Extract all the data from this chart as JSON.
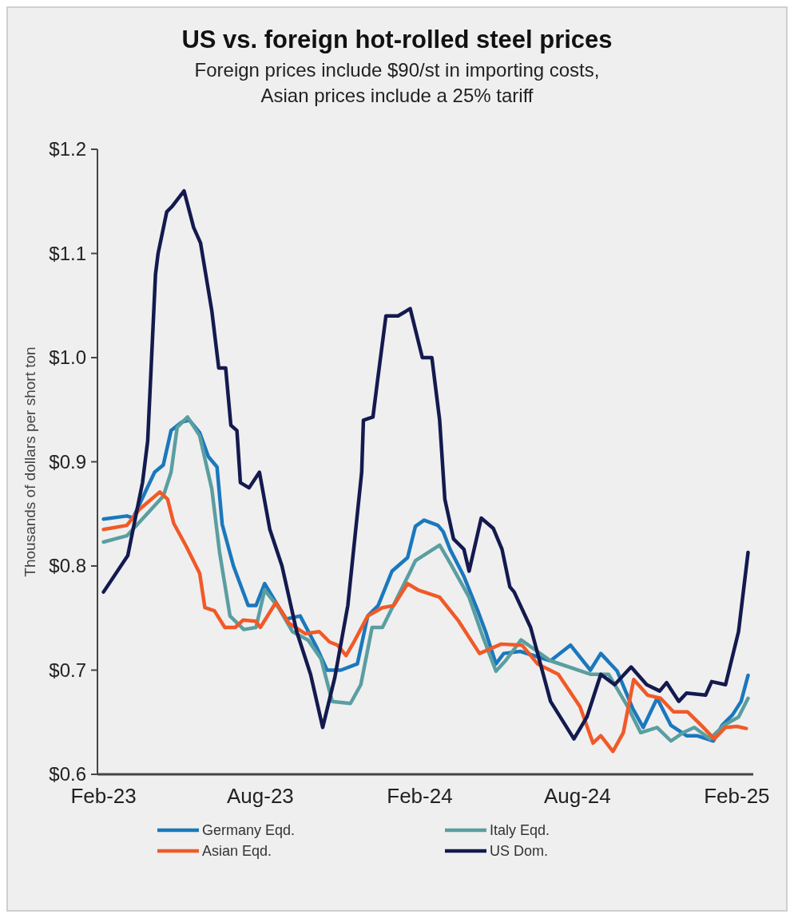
{
  "chart_data": {
    "type": "line",
    "title": "US vs. foreign hot-rolled steel prices",
    "subtitle": "Foreign prices include $90/st in importing costs, Asian prices include a 25% tariff",
    "ylabel": "Thousands of dollars per short ton",
    "xlim": [
      "2023-01-25",
      "2025-02-20"
    ],
    "xticks": [
      {
        "value": "2023-02-01",
        "label": "Feb-23"
      },
      {
        "value": "2023-08-01",
        "label": "Aug-23"
      },
      {
        "value": "2024-02-01",
        "label": "Feb-24"
      },
      {
        "value": "2024-08-01",
        "label": "Aug-24"
      },
      {
        "value": "2025-02-01",
        "label": "Feb-25"
      }
    ],
    "ylim": [
      0.6,
      1.2
    ],
    "yticks": [
      {
        "value": 0.6,
        "label": "$0.6"
      },
      {
        "value": 0.7,
        "label": "$0.7"
      },
      {
        "value": 0.8,
        "label": "$0.8"
      },
      {
        "value": 0.9,
        "label": "$0.9"
      },
      {
        "value": 1.0,
        "label": "$1.0"
      },
      {
        "value": 1.1,
        "label": "$1.1"
      },
      {
        "value": 1.2,
        "label": "$1.2"
      }
    ],
    "grid": false,
    "legend": "bottom",
    "marker": "none",
    "line_style": "solid",
    "series": [
      {
        "name": "Germany Eqd.",
        "color": "#1a78bd",
        "x": [
          "2023-02-01",
          "2023-02-28",
          "2023-03-07",
          "2023-04-01",
          "2023-04-11",
          "2023-04-20",
          "2023-05-02",
          "2023-05-11",
          "2023-05-23",
          "2023-06-02",
          "2023-06-12",
          "2023-06-18",
          "2023-07-01",
          "2023-07-18",
          "2023-07-27",
          "2023-08-06",
          "2023-08-19",
          "2023-08-31",
          "2023-09-16",
          "2023-10-05",
          "2023-10-17",
          "2023-11-02",
          "2023-11-21",
          "2023-12-03",
          "2023-12-15",
          "2023-12-31",
          "2024-01-18",
          "2024-01-27",
          "2024-02-06",
          "2024-02-22",
          "2024-02-28",
          "2024-03-07",
          "2024-03-23",
          "2024-04-08",
          "2024-04-17",
          "2024-04-29",
          "2024-05-08",
          "2024-05-27",
          "2024-07-01",
          "2024-07-24",
          "2024-08-16",
          "2024-08-28",
          "2024-09-16",
          "2024-10-04",
          "2024-10-16",
          "2024-11-01",
          "2024-11-17",
          "2024-12-05",
          "2024-12-17",
          "2025-01-05",
          "2025-01-15",
          "2025-01-27",
          "2025-02-06",
          "2025-02-14"
        ],
        "values": [
          0.845,
          0.848,
          0.846,
          0.89,
          0.897,
          0.93,
          0.938,
          0.94,
          0.928,
          0.905,
          0.895,
          0.84,
          0.8,
          0.762,
          0.762,
          0.783,
          0.765,
          0.749,
          0.752,
          0.722,
          0.7,
          0.7,
          0.706,
          0.752,
          0.762,
          0.795,
          0.808,
          0.838,
          0.844,
          0.839,
          0.833,
          0.816,
          0.79,
          0.757,
          0.737,
          0.706,
          0.716,
          0.718,
          0.709,
          0.724,
          0.7,
          0.716,
          0.699,
          0.663,
          0.645,
          0.673,
          0.647,
          0.637,
          0.637,
          0.632,
          0.647,
          0.657,
          0.67,
          0.695
        ]
      },
      {
        "name": "Italy Eqd.",
        "color": "#5a9ea0",
        "x": [
          "2023-02-01",
          "2023-02-28",
          "2023-04-11",
          "2023-04-20",
          "2023-04-27",
          "2023-05-09",
          "2023-05-23",
          "2023-06-06",
          "2023-06-15",
          "2023-06-27",
          "2023-07-13",
          "2023-07-27",
          "2023-08-06",
          "2023-08-22",
          "2023-09-07",
          "2023-09-25",
          "2023-10-10",
          "2023-10-23",
          "2023-11-13",
          "2023-11-25",
          "2023-12-08",
          "2023-12-20",
          "2024-01-20",
          "2024-01-27",
          "2024-02-24",
          "2024-03-07",
          "2024-03-29",
          "2024-04-13",
          "2024-04-29",
          "2024-05-10",
          "2024-05-28",
          "2024-07-01",
          "2024-08-16",
          "2024-09-06",
          "2024-09-28",
          "2024-10-13",
          "2024-11-01",
          "2024-11-17",
          "2024-12-01",
          "2024-12-14",
          "2025-01-01",
          "2025-01-17",
          "2025-02-03",
          "2025-02-14"
        ],
        "values": [
          0.823,
          0.829,
          0.867,
          0.89,
          0.933,
          0.943,
          0.925,
          0.874,
          0.813,
          0.752,
          0.739,
          0.741,
          0.777,
          0.76,
          0.737,
          0.729,
          0.711,
          0.67,
          0.668,
          0.686,
          0.741,
          0.741,
          0.793,
          0.805,
          0.82,
          0.803,
          0.77,
          0.734,
          0.699,
          0.709,
          0.729,
          0.709,
          0.696,
          0.696,
          0.665,
          0.64,
          0.645,
          0.632,
          0.64,
          0.645,
          0.634,
          0.647,
          0.655,
          0.673
        ]
      },
      {
        "name": "Asian Eqd.",
        "color": "#f05a28",
        "x": [
          "2023-02-01",
          "2023-02-28",
          "2023-03-14",
          "2023-04-07",
          "2023-04-16",
          "2023-04-23",
          "2023-05-08",
          "2023-05-23",
          "2023-05-29",
          "2023-06-09",
          "2023-06-21",
          "2023-07-03",
          "2023-07-12",
          "2023-07-27",
          "2023-08-01",
          "2023-08-19",
          "2023-09-03",
          "2023-09-22",
          "2023-10-08",
          "2023-10-20",
          "2023-10-29",
          "2023-11-08",
          "2023-11-17",
          "2023-12-03",
          "2023-12-20",
          "2024-01-02",
          "2024-01-18",
          "2024-01-30",
          "2024-02-24",
          "2024-03-17",
          "2024-04-10",
          "2024-05-05",
          "2024-05-29",
          "2024-06-16",
          "2024-07-10",
          "2024-08-04",
          "2024-08-19",
          "2024-08-28",
          "2024-09-11",
          "2024-09-23",
          "2024-10-05",
          "2024-10-21",
          "2024-11-05",
          "2024-11-20",
          "2024-12-06",
          "2024-12-22",
          "2025-01-06",
          "2025-01-19",
          "2025-02-01",
          "2025-02-12"
        ],
        "values": [
          0.835,
          0.839,
          0.854,
          0.871,
          0.864,
          0.841,
          0.818,
          0.793,
          0.76,
          0.757,
          0.741,
          0.741,
          0.748,
          0.747,
          0.741,
          0.765,
          0.745,
          0.735,
          0.737,
          0.727,
          0.724,
          0.714,
          0.727,
          0.752,
          0.76,
          0.762,
          0.783,
          0.777,
          0.77,
          0.747,
          0.716,
          0.725,
          0.724,
          0.706,
          0.696,
          0.665,
          0.63,
          0.637,
          0.622,
          0.64,
          0.691,
          0.676,
          0.673,
          0.66,
          0.66,
          0.647,
          0.634,
          0.645,
          0.646,
          0.644
        ]
      },
      {
        "name": "US Dom.",
        "color": "#141a4f",
        "x": [
          "2023-02-01",
          "2023-03-01",
          "2023-03-18",
          "2023-03-24",
          "2023-04-02",
          "2023-04-05",
          "2023-04-15",
          "2023-04-21",
          "2023-05-05",
          "2023-05-16",
          "2023-05-24",
          "2023-06-06",
          "2023-06-14",
          "2023-06-22",
          "2023-06-28",
          "2023-07-05",
          "2023-07-09",
          "2023-07-19",
          "2023-07-31",
          "2023-08-12",
          "2023-08-26",
          "2023-09-12",
          "2023-09-28",
          "2023-10-12",
          "2023-10-26",
          "2023-11-10",
          "2023-11-26",
          "2023-11-28",
          "2023-12-09",
          "2023-12-14",
          "2023-12-24",
          "2024-01-07",
          "2024-01-21",
          "2024-02-04",
          "2024-02-15",
          "2024-02-24",
          "2024-03-01",
          "2024-03-11",
          "2024-03-23",
          "2024-03-29",
          "2024-04-12",
          "2024-04-26",
          "2024-05-06",
          "2024-05-15",
          "2024-05-20",
          "2024-06-08",
          "2024-07-01",
          "2024-07-28",
          "2024-08-12",
          "2024-08-28",
          "2024-09-13",
          "2024-10-02",
          "2024-10-20",
          "2024-11-04",
          "2024-11-12",
          "2024-11-26",
          "2024-12-05",
          "2024-12-27",
          "2025-01-03",
          "2025-01-19",
          "2025-02-03",
          "2025-02-14"
        ],
        "values": [
          0.775,
          0.81,
          0.88,
          0.92,
          1.08,
          1.1,
          1.14,
          1.145,
          1.16,
          1.125,
          1.11,
          1.045,
          0.99,
          0.99,
          0.935,
          0.93,
          0.88,
          0.875,
          0.89,
          0.835,
          0.8,
          0.737,
          0.696,
          0.645,
          0.693,
          0.762,
          0.89,
          0.94,
          0.943,
          0.976,
          1.04,
          1.04,
          1.047,
          1.0,
          1.0,
          0.94,
          0.864,
          0.826,
          0.816,
          0.795,
          0.846,
          0.836,
          0.816,
          0.78,
          0.775,
          0.741,
          0.67,
          0.634,
          0.655,
          0.696,
          0.686,
          0.703,
          0.686,
          0.68,
          0.688,
          0.67,
          0.678,
          0.676,
          0.689,
          0.686,
          0.737,
          0.813
        ]
      }
    ]
  }
}
